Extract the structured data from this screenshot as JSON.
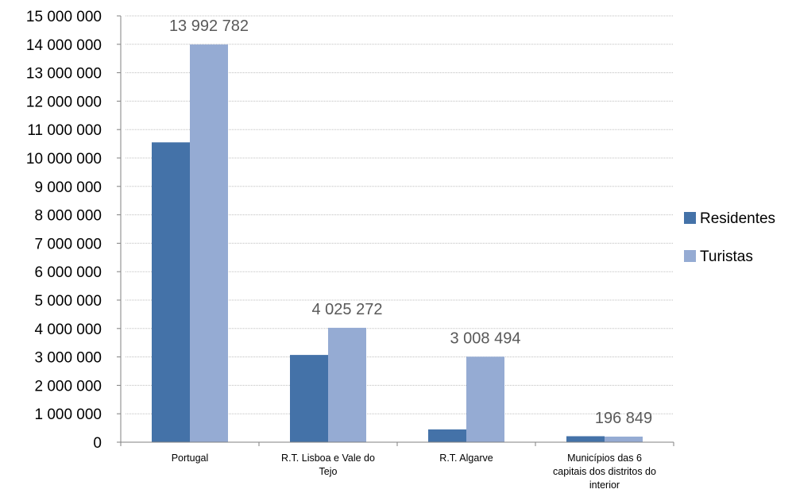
{
  "chart_data": {
    "type": "bar",
    "categories": [
      [
        "Portugal"
      ],
      [
        "R.T. Lisboa e Vale do",
        "Tejo"
      ],
      [
        "R.T. Algarve"
      ],
      [
        "Municípios das 6",
        "capitais dos distritos do",
        "interior"
      ]
    ],
    "series": [
      {
        "name": "Residentes",
        "color": "#4472A8",
        "values": [
          10550000,
          3070000,
          450000,
          210000
        ]
      },
      {
        "name": "Turistas",
        "color": "#95ABD3",
        "values": [
          13992782,
          4025272,
          3008494,
          196849
        ]
      }
    ],
    "data_labels": {
      "series": "Turistas",
      "texts": [
        "13 992 782",
        "4 025 272",
        "3 008 494",
        "196 849"
      ]
    },
    "ylim": [
      0,
      15000000
    ],
    "y_ticks": [
      0,
      1000000,
      2000000,
      3000000,
      4000000,
      5000000,
      6000000,
      7000000,
      8000000,
      9000000,
      10000000,
      11000000,
      12000000,
      13000000,
      14000000,
      15000000
    ],
    "y_tick_labels": [
      "0",
      "1 000 000",
      "2 000 000",
      "3 000 000",
      "4 000 000",
      "5 000 000",
      "6 000 000",
      "7 000 000",
      "8 000 000",
      "9 000 000",
      "10 000 000",
      "11 000 000",
      "12 000 000",
      "13 000 000",
      "14 000 000",
      "15 000 000"
    ],
    "gridlines": true,
    "gridline_color": "#BFBFBF",
    "legend_position": "right",
    "title": "",
    "xlabel": "",
    "ylabel": ""
  }
}
